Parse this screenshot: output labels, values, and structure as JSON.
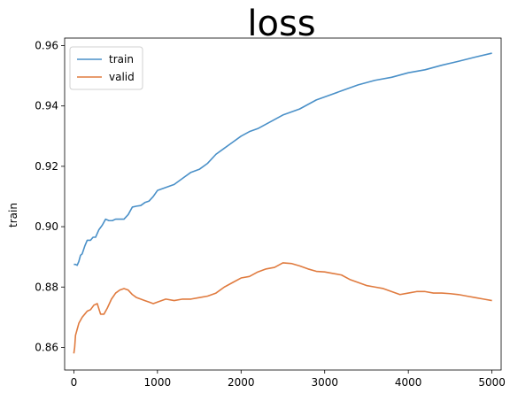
{
  "chart_data": {
    "type": "line",
    "title": "loss",
    "xlabel": "",
    "ylabel": "train",
    "xlim": [
      -110,
      5110
    ],
    "ylim": [
      0.8525,
      0.9625
    ],
    "xticks": [
      0,
      1000,
      2000,
      3000,
      4000,
      5000
    ],
    "xtick_labels": [
      "0",
      "1000",
      "2000",
      "3000",
      "4000",
      "5000"
    ],
    "yticks": [
      0.86,
      0.88,
      0.9,
      0.92,
      0.94,
      0.96
    ],
    "ytick_labels": [
      "0.86",
      "0.88",
      "0.90",
      "0.92",
      "0.94",
      "0.96"
    ],
    "grid": false,
    "legend_position": "upper-left",
    "series": [
      {
        "name": "train",
        "color": "#4a90c8",
        "x": [
          0,
          20,
          40,
          60,
          80,
          100,
          130,
          160,
          200,
          230,
          260,
          300,
          340,
          380,
          420,
          460,
          500,
          550,
          600,
          650,
          700,
          750,
          800,
          850,
          900,
          950,
          1000,
          1100,
          1200,
          1300,
          1400,
          1500,
          1600,
          1700,
          1800,
          1900,
          2000,
          2100,
          2200,
          2300,
          2400,
          2500,
          2600,
          2700,
          2800,
          2900,
          3000,
          3200,
          3400,
          3600,
          3800,
          4000,
          4200,
          4400,
          4600,
          4800,
          5000
        ],
        "y": [
          0.8875,
          0.8875,
          0.8872,
          0.8885,
          0.8905,
          0.891,
          0.8935,
          0.8955,
          0.8955,
          0.8965,
          0.8965,
          0.899,
          0.9005,
          0.9025,
          0.902,
          0.902,
          0.9025,
          0.9025,
          0.9025,
          0.904,
          0.9065,
          0.9068,
          0.907,
          0.908,
          0.9085,
          0.91,
          0.912,
          0.913,
          0.914,
          0.916,
          0.918,
          0.919,
          0.921,
          0.924,
          0.926,
          0.928,
          0.93,
          0.9315,
          0.9325,
          0.934,
          0.9355,
          0.937,
          0.938,
          0.939,
          0.9405,
          0.942,
          0.943,
          0.945,
          0.947,
          0.9485,
          0.9495,
          0.951,
          0.952,
          0.9535,
          0.9548,
          0.9562,
          0.9575
        ]
      },
      {
        "name": "valid",
        "color": "#e07b3f",
        "x": [
          0,
          10,
          20,
          40,
          60,
          80,
          100,
          130,
          160,
          200,
          240,
          280,
          320,
          360,
          400,
          450,
          500,
          550,
          600,
          650,
          700,
          750,
          800,
          850,
          900,
          950,
          1000,
          1100,
          1200,
          1300,
          1400,
          1500,
          1600,
          1700,
          1800,
          1900,
          2000,
          2100,
          2200,
          2300,
          2400,
          2500,
          2600,
          2700,
          2800,
          2900,
          3000,
          3100,
          3200,
          3300,
          3400,
          3500,
          3600,
          3700,
          3800,
          3900,
          4000,
          4100,
          4200,
          4300,
          4400,
          4500,
          4600,
          4700,
          4800,
          4900,
          5000
        ],
        "y": [
          0.858,
          0.86,
          0.864,
          0.866,
          0.868,
          0.869,
          0.87,
          0.871,
          0.872,
          0.8725,
          0.874,
          0.8745,
          0.871,
          0.871,
          0.873,
          0.876,
          0.878,
          0.879,
          0.8795,
          0.879,
          0.8775,
          0.8765,
          0.876,
          0.8755,
          0.875,
          0.8745,
          0.875,
          0.876,
          0.8755,
          0.876,
          0.876,
          0.8765,
          0.877,
          0.878,
          0.88,
          0.8815,
          0.883,
          0.8835,
          0.885,
          0.886,
          0.8865,
          0.888,
          0.8878,
          0.887,
          0.886,
          0.8852,
          0.885,
          0.8845,
          0.884,
          0.8825,
          0.8815,
          0.8805,
          0.88,
          0.8795,
          0.8785,
          0.8775,
          0.878,
          0.8785,
          0.8785,
          0.878,
          0.878,
          0.8778,
          0.8775,
          0.877,
          0.8765,
          0.876,
          0.8755
        ]
      }
    ]
  }
}
